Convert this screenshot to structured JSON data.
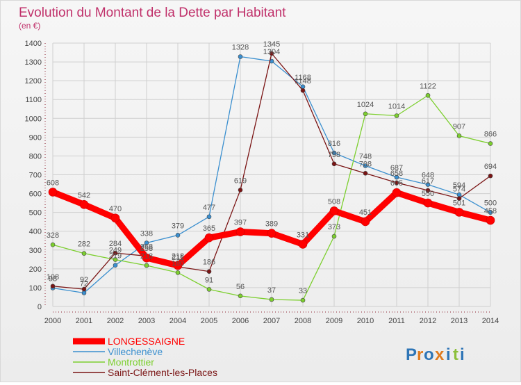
{
  "header": {
    "title": "Evolution du Montant de la Dette par Habitant",
    "unit": "(en €)"
  },
  "logo": {
    "letters": [
      "P",
      "r",
      "o",
      "x",
      "i",
      "t",
      "i"
    ]
  },
  "colors": {
    "title": "#c0306a",
    "grid": "#cfcfcf",
    "axis": "#8a1a2a",
    "logo": [
      "#2e75b6",
      "#e07b1e",
      "#2e75b6",
      "#e07b1e",
      "#2e75b6",
      "#8bbf3a",
      "#2e75b6"
    ]
  },
  "chart_data": {
    "type": "line",
    "title": "Evolution du Montant de la Dette par Habitant",
    "subtitle": "(en €)",
    "xlabel": "",
    "ylabel": "",
    "x": [
      2000,
      2001,
      2002,
      2003,
      2004,
      2005,
      2006,
      2007,
      2008,
      2009,
      2010,
      2011,
      2012,
      2013,
      2014
    ],
    "ylim": [
      0,
      1400
    ],
    "yticks": [
      0,
      100,
      200,
      300,
      400,
      500,
      600,
      700,
      800,
      900,
      1000,
      1100,
      1200,
      1300,
      1400
    ],
    "grid": true,
    "legend_position": "bottom-left",
    "series": [
      {
        "name": "LONGESSAIGNE",
        "color": "#ff0000",
        "values": [
          608,
          542,
          470,
          258,
          218,
          365,
          397,
          389,
          331,
          508,
          451,
          605,
          550,
          501,
          458
        ]
      },
      {
        "name": "Villechenève",
        "color": "#3a8fcf",
        "values": [
          98,
          72,
          219,
          338,
          379,
          477,
          1328,
          1304,
          1168,
          816,
          748,
          687,
          648,
          594,
          500
        ]
      },
      {
        "name": "Montrottier",
        "color": "#7ccf2e",
        "values": [
          328,
          282,
          249,
          218,
          180,
          91,
          56,
          37,
          33,
          373,
          1024,
          1014,
          1122,
          907,
          866
        ]
      },
      {
        "name": "Saint-Clément-les-Places",
        "color": "#7a1414",
        "values": [
          108,
          92,
          284,
          268,
          211,
          186,
          619,
          1345,
          1148,
          758,
          708,
          658,
          617,
          574,
          694
        ]
      }
    ]
  }
}
